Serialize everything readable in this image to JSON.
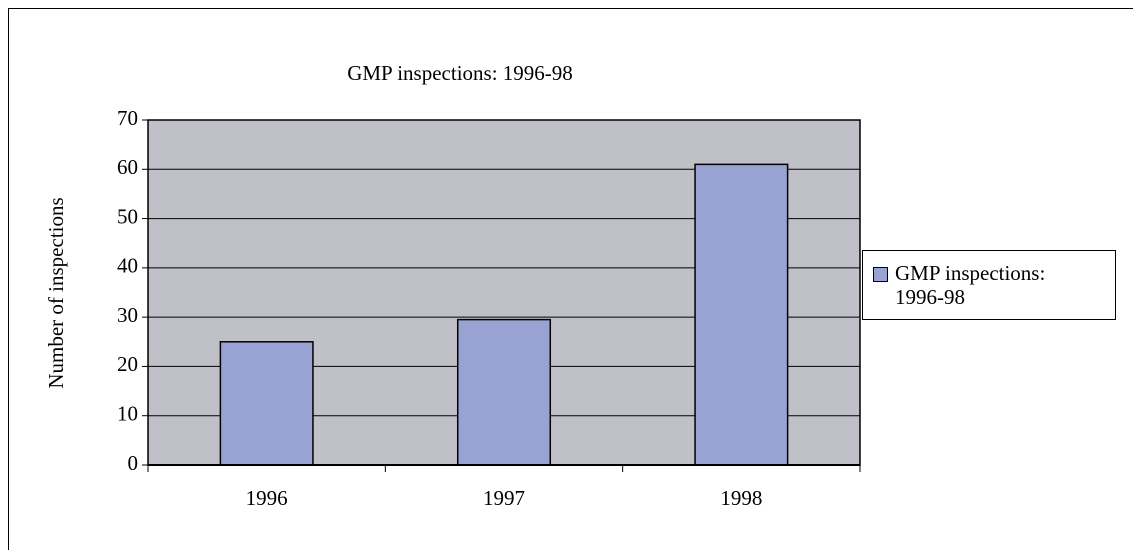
{
  "chart_data": {
    "type": "bar",
    "title": "GMP inspections: 1996-98",
    "y_label": "Number of  inspections",
    "categories": [
      "1996",
      "1997",
      "1998"
    ],
    "series": [
      {
        "name": "GMP inspections: 1996-98",
        "color": "#99a3d3",
        "values": [
          25,
          29.5,
          61
        ]
      }
    ],
    "ylim": [
      0,
      70
    ],
    "yticks": [
      0,
      10,
      20,
      30,
      40,
      50,
      60,
      70
    ],
    "grid": true,
    "legend": "right"
  }
}
